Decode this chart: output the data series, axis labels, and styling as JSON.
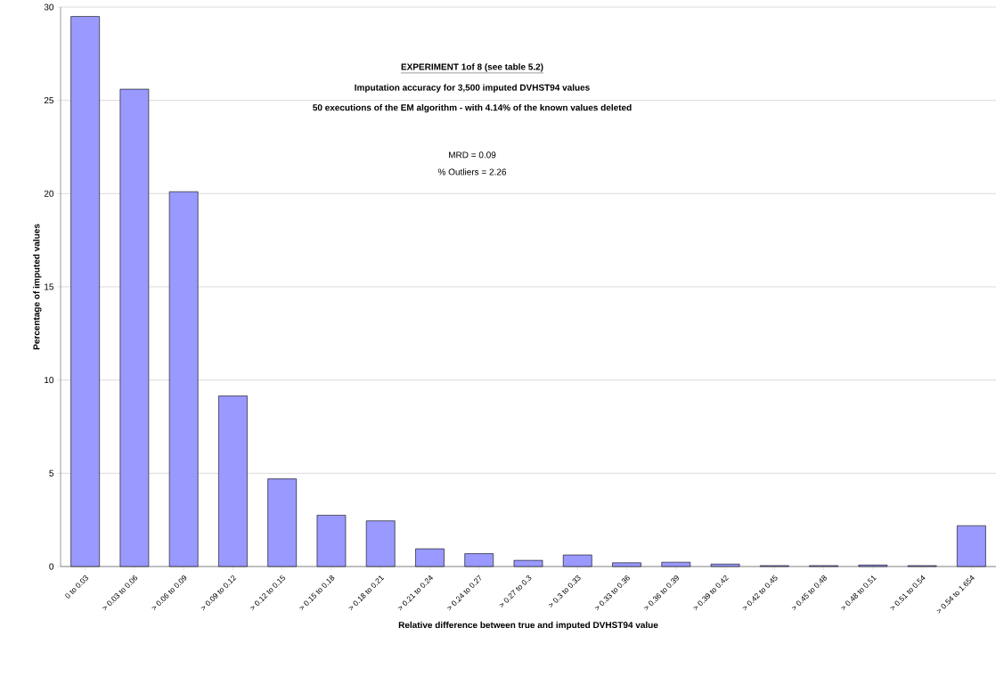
{
  "chart_data": {
    "type": "bar",
    "title": "EXPERIMENT  1of 8  (see table 5.2)",
    "subtitle": "Imputation accuracy for 3,500 imputed DVHST94 values",
    "annotations": [
      "50 executions of the EM algorithm  -  with  4.14% of the known values deleted",
      "MRD  =  0.09",
      "% Outliers  =  2.26"
    ],
    "xlabel": "Relative difference between true and imputed DVHST94 value",
    "ylabel": "Percentage of imputed values",
    "categories": [
      "0 to 0.03",
      "> 0.03 to 0.06",
      "> 0.06 to 0.09",
      "> 0.09 to 0.12",
      "> 0.12 to 0.15",
      "> 0.15 to 0.18",
      "> 0.18 to 0.21",
      "> 0.21 to 0.24",
      "> 0.24 to 0.27",
      "> 0.27 to 0.3",
      "> 0.3 to 0.33",
      "> 0.33 to 0.36",
      "> 0.36 to 0.39",
      "> 0.39 to 0.42",
      "> 0.42 to 0.45",
      "> 0.45 to 0.48",
      "> 0.48 to 0.51",
      "> 0.51 to 0.54",
      "> 0.54 to 1.654"
    ],
    "values": [
      29.5,
      25.6,
      20.1,
      9.15,
      4.7,
      2.75,
      2.45,
      0.95,
      0.69,
      0.33,
      0.62,
      0.2,
      0.23,
      0.13,
      0.05,
      0.05,
      0.08,
      0.05,
      2.19
    ],
    "color": "#9999ff",
    "ylim": [
      0,
      30
    ],
    "yticks": [
      0,
      5,
      10,
      15,
      20,
      25,
      30
    ],
    "grid": "y",
    "legend": false
  }
}
